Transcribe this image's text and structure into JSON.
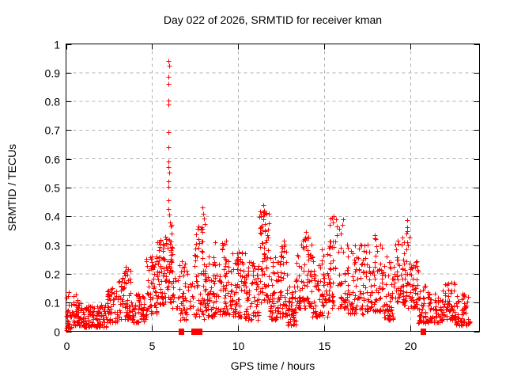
{
  "chart_data": {
    "type": "scatter",
    "title": "Day 022 of 2026, SRMTID for receiver kman",
    "xlabel": "GPS time / hours",
    "ylabel": "SRMTID / TECUs",
    "xlim": [
      0,
      24
    ],
    "ylim": [
      0,
      1
    ],
    "grid": true,
    "legend": "none",
    "background": "#ffffff",
    "axis_color": "#000000",
    "grid_color": "#b0b0b0",
    "xticks": [
      {
        "v": 0,
        "label": "0"
      },
      {
        "v": 5,
        "label": "5"
      },
      {
        "v": 10,
        "label": "10"
      },
      {
        "v": 15,
        "label": "15"
      },
      {
        "v": 20,
        "label": "20"
      }
    ],
    "yticks": [
      {
        "v": 0.0,
        "label": "0"
      },
      {
        "v": 0.1,
        "label": "0.1"
      },
      {
        "v": 0.2,
        "label": "0.2"
      },
      {
        "v": 0.3,
        "label": "0.3"
      },
      {
        "v": 0.4,
        "label": "0.4"
      },
      {
        "v": 0.5,
        "label": "0.5"
      },
      {
        "v": 0.6,
        "label": "0.6"
      },
      {
        "v": 0.7,
        "label": "0.7"
      },
      {
        "v": 0.8,
        "label": "0.8"
      },
      {
        "v": 0.9,
        "label": "0.9"
      },
      {
        "v": 1.0,
        "label": "1"
      }
    ],
    "series": [
      {
        "name": "srmtid-points",
        "marker": "plus",
        "color": "#ff0000",
        "points": [
          [
            0.03,
            0.004
          ],
          [
            5.93,
            0.94
          ],
          [
            5.97,
            0.925
          ],
          [
            5.94,
            0.885
          ],
          [
            5.96,
            0.862
          ],
          [
            5.95,
            0.803
          ],
          [
            5.93,
            0.79
          ],
          [
            5.95,
            0.693
          ],
          [
            5.96,
            0.64
          ],
          [
            5.93,
            0.592
          ],
          [
            5.95,
            0.572
          ],
          [
            5.97,
            0.552
          ],
          [
            5.94,
            0.523
          ],
          [
            5.96,
            0.502
          ],
          [
            5.94,
            0.455
          ],
          [
            5.92,
            0.425
          ],
          [
            5.97,
            0.405
          ],
          [
            7.93,
            0.43
          ],
          [
            7.97,
            0.41
          ],
          [
            8.0,
            0.392
          ],
          [
            8.04,
            0.372
          ],
          [
            7.9,
            0.356
          ],
          [
            11.44,
            0.44
          ],
          [
            11.48,
            0.421
          ],
          [
            11.5,
            0.405
          ],
          [
            11.46,
            0.39
          ],
          [
            11.53,
            0.372
          ],
          [
            11.55,
            0.352
          ],
          [
            15.55,
            0.402
          ],
          [
            15.5,
            0.378
          ],
          [
            16.05,
            0.37
          ],
          [
            19.78,
            0.386
          ],
          [
            19.82,
            0.362
          ],
          [
            3.45,
            0.225
          ],
          [
            3.52,
            0.21
          ],
          [
            9.3,
            0.315
          ],
          [
            12.62,
            0.315
          ],
          [
            13.95,
            0.345
          ],
          [
            14.05,
            0.33
          ],
          [
            17.9,
            0.335
          ]
        ],
        "dense_bands": [
          {
            "x0": 0.02,
            "x1": 0.35,
            "n": 28,
            "ymin": 0.01,
            "ymax": 0.16,
            "pow": 1.5
          },
          {
            "x0": 0.35,
            "x1": 1.05,
            "n": 55,
            "ymin": 0.02,
            "ymax": 0.13,
            "pow": 1.7
          },
          {
            "x0": 1.05,
            "x1": 2.35,
            "n": 95,
            "ymin": 0.015,
            "ymax": 0.1,
            "pow": 1.7
          },
          {
            "x0": 2.35,
            "x1": 2.95,
            "n": 50,
            "ymin": 0.03,
            "ymax": 0.15,
            "pow": 1.6
          },
          {
            "x0": 2.95,
            "x1": 3.85,
            "n": 70,
            "ymin": 0.04,
            "ymax": 0.22,
            "pow": 1.6
          },
          {
            "x0": 3.85,
            "x1": 4.65,
            "n": 55,
            "ymin": 0.03,
            "ymax": 0.13,
            "pow": 1.6
          },
          {
            "x0": 4.65,
            "x1": 5.3,
            "n": 55,
            "ymin": 0.06,
            "ymax": 0.27,
            "pow": 1.4
          },
          {
            "x0": 5.3,
            "x1": 5.75,
            "n": 48,
            "ymin": 0.09,
            "ymax": 0.34,
            "pow": 1.2
          },
          {
            "x0": 5.75,
            "x1": 6.18,
            "n": 55,
            "ymin": 0.1,
            "ymax": 0.38,
            "pow": 1.1
          },
          {
            "x0": 6.18,
            "x1": 6.5,
            "n": 14,
            "ymin": 0.08,
            "ymax": 0.22,
            "pow": 1.3
          },
          {
            "x0": 6.55,
            "x1": 7.05,
            "n": 40,
            "ymin": 0.04,
            "ymax": 0.26,
            "pow": 1.3
          },
          {
            "x0": 7.05,
            "x1": 7.45,
            "n": 12,
            "ymin": 0.05,
            "ymax": 0.18,
            "pow": 1.3
          },
          {
            "x0": 7.45,
            "x1": 8.06,
            "n": 55,
            "ymin": 0.04,
            "ymax": 0.37,
            "pow": 1.2
          },
          {
            "x0": 8.06,
            "x1": 8.6,
            "n": 50,
            "ymin": 0.05,
            "ymax": 0.26,
            "pow": 1.5
          },
          {
            "x0": 8.6,
            "x1": 9.6,
            "n": 78,
            "ymin": 0.06,
            "ymax": 0.31,
            "pow": 1.6
          },
          {
            "x0": 9.6,
            "x1": 10.4,
            "n": 65,
            "ymin": 0.05,
            "ymax": 0.28,
            "pow": 1.6
          },
          {
            "x0": 10.4,
            "x1": 11.2,
            "n": 65,
            "ymin": 0.04,
            "ymax": 0.25,
            "pow": 1.6
          },
          {
            "x0": 11.2,
            "x1": 11.8,
            "n": 60,
            "ymin": 0.1,
            "ymax": 0.43,
            "pow": 1.2
          },
          {
            "x0": 11.8,
            "x1": 12.4,
            "n": 55,
            "ymin": 0.04,
            "ymax": 0.26,
            "pow": 1.6
          },
          {
            "x0": 12.4,
            "x1": 12.85,
            "n": 40,
            "ymin": 0.05,
            "ymax": 0.31,
            "pow": 1.5
          },
          {
            "x0": 12.85,
            "x1": 13.35,
            "n": 45,
            "ymin": 0.02,
            "ymax": 0.16,
            "pow": 1.5
          },
          {
            "x0": 13.35,
            "x1": 14.3,
            "n": 80,
            "ymin": 0.08,
            "ymax": 0.33,
            "pow": 1.5
          },
          {
            "x0": 14.3,
            "x1": 15.2,
            "n": 70,
            "ymin": 0.05,
            "ymax": 0.29,
            "pow": 1.6
          },
          {
            "x0": 15.2,
            "x1": 16.2,
            "n": 75,
            "ymin": 0.08,
            "ymax": 0.4,
            "pow": 1.6
          },
          {
            "x0": 16.2,
            "x1": 17.3,
            "n": 80,
            "ymin": 0.06,
            "ymax": 0.31,
            "pow": 1.6
          },
          {
            "x0": 17.3,
            "x1": 18.4,
            "n": 80,
            "ymin": 0.07,
            "ymax": 0.33,
            "pow": 1.7
          },
          {
            "x0": 18.4,
            "x1": 19.0,
            "n": 50,
            "ymin": 0.04,
            "ymax": 0.26,
            "pow": 1.6
          },
          {
            "x0": 19.0,
            "x1": 19.6,
            "n": 50,
            "ymin": 0.1,
            "ymax": 0.33,
            "pow": 1.4
          },
          {
            "x0": 19.6,
            "x1": 20.0,
            "n": 35,
            "ymin": 0.08,
            "ymax": 0.36,
            "pow": 1.3
          },
          {
            "x0": 20.0,
            "x1": 20.45,
            "n": 40,
            "ymin": 0.08,
            "ymax": 0.25,
            "pow": 1.4
          },
          {
            "x0": 20.45,
            "x1": 21.1,
            "n": 48,
            "ymin": 0.03,
            "ymax": 0.16,
            "pow": 1.6
          },
          {
            "x0": 21.1,
            "x1": 21.85,
            "n": 52,
            "ymin": 0.03,
            "ymax": 0.13,
            "pow": 1.6
          },
          {
            "x0": 21.85,
            "x1": 22.55,
            "n": 55,
            "ymin": 0.04,
            "ymax": 0.17,
            "pow": 1.6
          },
          {
            "x0": 22.55,
            "x1": 23.45,
            "n": 60,
            "ymin": 0.02,
            "ymax": 0.13,
            "pow": 1.6
          }
        ]
      },
      {
        "name": "square-markers",
        "marker": "filled-square",
        "color": "#ff0000",
        "points": [
          [
            6.68,
            0
          ],
          [
            7.42,
            0
          ],
          [
            7.52,
            0
          ],
          [
            7.62,
            0
          ],
          [
            7.72,
            0
          ],
          [
            20.7,
            0
          ]
        ]
      }
    ]
  }
}
